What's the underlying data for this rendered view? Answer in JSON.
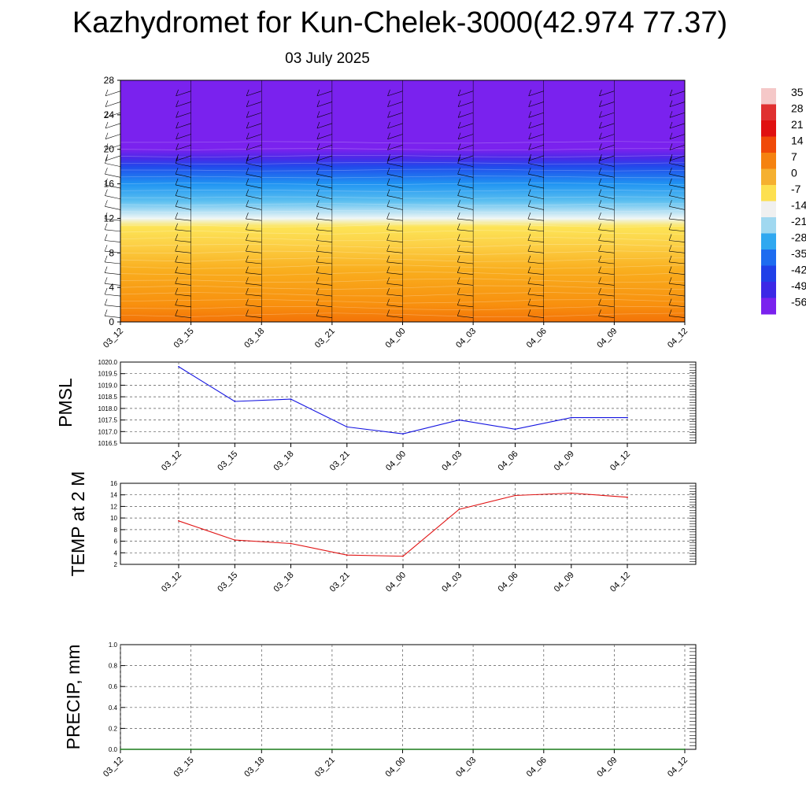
{
  "header": {
    "title": "Kazhydromet for Kun-Chelek-3000(42.974 77.37)",
    "subtitle": "03 July 2025"
  },
  "colors": {
    "pmsl_line": "#1414e0",
    "temp_line": "#e01414",
    "precip_line": "#1a7a1a",
    "barb": "#000000",
    "grid": "#555555"
  },
  "chart_data": [
    {
      "type": "heatmap",
      "title": "",
      "ylabel": "",
      "x_tick_labels": [
        "03_12",
        "03_15",
        "03_18",
        "03_21",
        "04_00",
        "04_03",
        "04_06",
        "04_09",
        "04_12"
      ],
      "y_ticks": [
        0,
        4,
        8,
        12,
        16,
        20,
        24,
        28
      ],
      "ylim": [
        0,
        28
      ],
      "colorbar_labels": [
        "35",
        "28",
        "21",
        "14",
        "7",
        "0",
        "-7",
        "-14",
        "-21",
        "-28",
        "-35",
        "-42",
        "-49",
        "-56"
      ],
      "colorbar_colors": [
        "#f5c8c8",
        "#e03030",
        "#e01010",
        "#f04a08",
        "#f58210",
        "#f5b030",
        "#fde050",
        "#f0f0f0",
        "#a0d8f0",
        "#30a8f0",
        "#1e6cf0",
        "#2040e8",
        "#3c28e6",
        "#7a22ee"
      ],
      "temperature_profile": [
        {
          "height": 0,
          "value": 10
        },
        {
          "height": 2,
          "value": 4
        },
        {
          "height": 6,
          "value": -2
        },
        {
          "height": 9,
          "value": -7
        },
        {
          "height": 11,
          "value": -9
        },
        {
          "height": 12,
          "value": -14
        },
        {
          "height": 14,
          "value": -26
        },
        {
          "height": 16,
          "value": -35
        },
        {
          "height": 18,
          "value": -45
        },
        {
          "height": 19,
          "value": -52
        },
        {
          "height": 20,
          "value": -56
        },
        {
          "height": 28,
          "value": -56
        }
      ],
      "barbs": "wind barbs at each 3-hour time step from 0 to 28"
    },
    {
      "type": "line",
      "ylabel": "PMSL",
      "x": [
        "03_12",
        "03_15",
        "03_18",
        "03_21",
        "04_00",
        "04_03",
        "04_06",
        "04_09",
        "04_12"
      ],
      "series": [
        {
          "values": [
            1019.8,
            1018.3,
            1018.4,
            1017.2,
            1016.9,
            1017.5,
            1017.1,
            1017.6,
            1017.6
          ]
        }
      ],
      "y_tick_labels": [
        "1016.5",
        "1017.0",
        "1017.5",
        "1018.0",
        "1018.5",
        "1019.0",
        "1019.5",
        "1020.0"
      ],
      "ylim": [
        1016.5,
        1020.0
      ],
      "grid": true
    },
    {
      "type": "line",
      "ylabel": "TEMP at 2 M",
      "x": [
        "03_12",
        "03_15",
        "03_18",
        "03_21",
        "04_00",
        "04_03",
        "04_06",
        "04_09",
        "04_12"
      ],
      "series": [
        {
          "values": [
            9.5,
            6.2,
            5.6,
            3.6,
            3.4,
            11.5,
            13.9,
            14.3,
            13.6
          ]
        }
      ],
      "y_tick_labels": [
        "2",
        "4",
        "6",
        "8",
        "10",
        "12",
        "14",
        "16"
      ],
      "ylim": [
        2,
        16
      ],
      "grid": true
    },
    {
      "type": "line",
      "ylabel": "PRECIP, mm",
      "x_tick_labels": [
        "03_12",
        "03_15",
        "03_18",
        "03_21",
        "04_00",
        "04_03",
        "04_06",
        "04_09",
        "04_12"
      ],
      "series": [
        {
          "values": [
            0,
            0,
            0,
            0,
            0,
            0,
            0,
            0,
            0
          ]
        }
      ],
      "y_tick_labels": [
        "0.0",
        "0.2",
        "0.4",
        "0.6",
        "0.8",
        "1.0"
      ],
      "ylim": [
        0,
        1.0
      ],
      "grid": true
    }
  ]
}
